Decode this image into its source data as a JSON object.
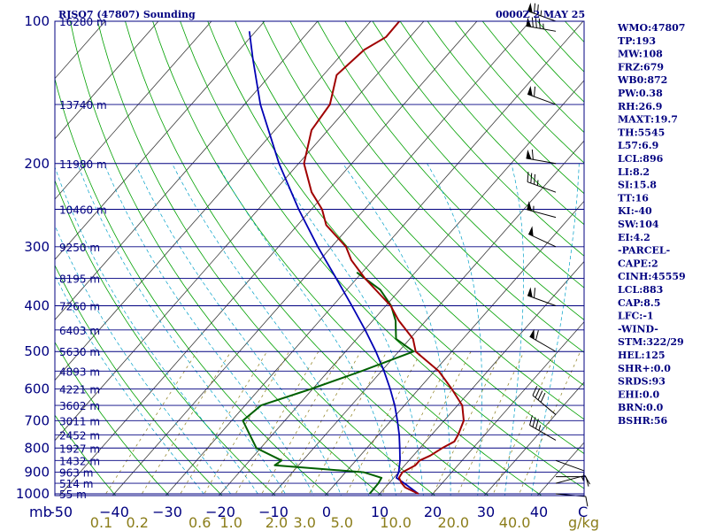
{
  "chart_data": {
    "type": "skew-t",
    "title": "RJSO7 (47807) Sounding",
    "time_label": "0000Z  2 MAY 25",
    "pressure_unit_label": "mb",
    "pressure_levels": [
      100,
      200,
      300,
      400,
      500,
      600,
      700,
      800,
      900,
      1000
    ],
    "pressure_labels": [
      "100",
      "200",
      "300",
      "400",
      "500",
      "600",
      "700",
      "800",
      "900",
      "1000"
    ],
    "height_labels": [
      {
        "p": 100,
        "text": "16280 m"
      },
      {
        "p": 150,
        "text": "13740 m"
      },
      {
        "p": 200,
        "text": "11980 m"
      },
      {
        "p": 250,
        "text": "10460 m"
      },
      {
        "p": 300,
        "text": "9250 m"
      },
      {
        "p": 350,
        "text": "8195 m"
      },
      {
        "p": 400,
        "text": "7260 m"
      },
      {
        "p": 450,
        "text": "6403 m"
      },
      {
        "p": 500,
        "text": "5630 m"
      },
      {
        "p": 550,
        "text": "4893 m"
      },
      {
        "p": 600,
        "text": "4221 m"
      },
      {
        "p": 650,
        "text": "3602 m"
      },
      {
        "p": 700,
        "text": "3011 m"
      },
      {
        "p": 750,
        "text": "2452 m"
      },
      {
        "p": 800,
        "text": "1927 m"
      },
      {
        "p": 850,
        "text": "1432 m"
      },
      {
        "p": 900,
        "text": "963 m"
      },
      {
        "p": 950,
        "text": "514 m"
      },
      {
        "p": 1000,
        "text": "55 m"
      }
    ],
    "temperature_ticks": [
      -50,
      -40,
      -30,
      -20,
      -10,
      0,
      10,
      20,
      30,
      40
    ],
    "temperature_labels": [
      "-50",
      "−40",
      "−30",
      "−20",
      "−10",
      "0",
      "10",
      "20",
      "30",
      "40"
    ],
    "xlabel": "C",
    "mixing_ratio_labels": [
      "0.1",
      "0.2",
      "0.6",
      "1.0",
      "2.0",
      "3.0",
      "5.0",
      "10.0",
      "20.0",
      "40.0"
    ],
    "mixing_ratio_unit": "g/kg",
    "temperature_profile": [
      [
        1000,
        17.3
      ],
      [
        970,
        13.8
      ],
      [
        950,
        12.4
      ],
      [
        925,
        11.0
      ],
      [
        900,
        10.7
      ],
      [
        870,
        12.0
      ],
      [
        850,
        12.0
      ],
      [
        830,
        13.2
      ],
      [
        800,
        14.2
      ],
      [
        775,
        15.4
      ],
      [
        750,
        15.0
      ],
      [
        700,
        13.7
      ],
      [
        650,
        10.9
      ],
      [
        600,
        6.2
      ],
      [
        550,
        0.8
      ],
      [
        500,
        -6.8
      ],
      [
        470,
        -9.4
      ],
      [
        430,
        -15.1
      ],
      [
        400,
        -19.1
      ],
      [
        350,
        -28.5
      ],
      [
        320,
        -34.1
      ],
      [
        300,
        -37.3
      ],
      [
        270,
        -44.6
      ],
      [
        250,
        -48.0
      ],
      [
        230,
        -52.8
      ],
      [
        200,
        -59.0
      ],
      [
        170,
        -63.1
      ],
      [
        150,
        -63.9
      ],
      [
        130,
        -67.5
      ],
      [
        115,
        -66.5
      ],
      [
        108,
        -64.5
      ],
      [
        100,
        -64.6
      ]
    ],
    "dewpoint_profile": [
      [
        1000,
        8.1
      ],
      [
        950,
        8.0
      ],
      [
        925,
        7.7
      ],
      [
        900,
        3.4
      ],
      [
        870,
        -14.5
      ],
      [
        850,
        -14.0
      ],
      [
        800,
        -20.8
      ],
      [
        700,
        -27.9
      ],
      [
        650,
        -27.0
      ],
      [
        600,
        -20.3
      ],
      [
        550,
        -13.8
      ],
      [
        500,
        -7.2
      ],
      [
        470,
        -12.6
      ],
      [
        430,
        -15.7
      ],
      [
        400,
        -19.0
      ],
      [
        370,
        -23.7
      ],
      [
        340,
        -31.0
      ]
    ],
    "parcel_profile": [
      [
        1000,
        17.3
      ],
      [
        950,
        12.9
      ],
      [
        925,
        10.5
      ],
      [
        900,
        10.0
      ],
      [
        850,
        8.3
      ],
      [
        800,
        6.2
      ],
      [
        750,
        3.9
      ],
      [
        700,
        1.2
      ],
      [
        650,
        -1.8
      ],
      [
        600,
        -5.4
      ],
      [
        550,
        -9.5
      ],
      [
        500,
        -14.3
      ],
      [
        450,
        -19.9
      ],
      [
        400,
        -26.4
      ],
      [
        350,
        -33.9
      ],
      [
        300,
        -42.6
      ],
      [
        250,
        -52.4
      ],
      [
        200,
        -63.7
      ],
      [
        150,
        -77.0
      ],
      [
        120,
        -86.0
      ],
      [
        105,
        -91.2
      ]
    ],
    "wind_barbs": [
      {
        "p": 1000,
        "dir": 95,
        "spd": 10
      },
      {
        "p": 950,
        "dir": 75,
        "spd": 15
      },
      {
        "p": 920,
        "dir": 90,
        "spd": 10
      },
      {
        "p": 850,
        "dir": 110,
        "spd": 10
      },
      {
        "p": 770,
        "dir": 300,
        "spd": 35
      },
      {
        "p": 680,
        "dir": 310,
        "spd": 40
      },
      {
        "p": 500,
        "dir": 300,
        "spd": 60
      },
      {
        "p": 400,
        "dir": 290,
        "spd": 60
      },
      {
        "p": 300,
        "dir": 295,
        "spd": 50
      },
      {
        "p": 260,
        "dir": 285,
        "spd": 55
      },
      {
        "p": 230,
        "dir": 290,
        "spd": 35
      },
      {
        "p": 200,
        "dir": 280,
        "spd": 60
      },
      {
        "p": 150,
        "dir": 290,
        "spd": 60
      },
      {
        "p": 105,
        "dir": 280,
        "spd": 85
      },
      {
        "p": 100,
        "dir": 290,
        "spd": 75
      }
    ]
  },
  "indices": [
    "WMO:47807",
    "TP:193",
    "MW:108",
    "FRZ:679",
    "WB0:872",
    "PW:0.38",
    "RH:26.9",
    "MAXT:19.7",
    "TH:5545",
    "L57:6.9",
    "LCL:896",
    "LI:8.2",
    "SI:15.8",
    "TT:16",
    "KI:-40",
    "SW:104",
    "EI:4.2",
    "-PARCEL-",
    "CAPE:2",
    "CINH:45559",
    "LCL:883",
    "CAP:8.5",
    "LFC:-1",
    "-WIND-",
    "STM:322/29",
    "HEL:125",
    "SHR+:0.0",
    "SRDS:93",
    "EHI:0.0",
    "BRN:0.0",
    "BSHR:56"
  ],
  "colors": {
    "isobar": "#000080",
    "isotherm": "#3a3a3a",
    "dry_adiabat": "#00a000",
    "moist_adiabat": "#00a0c8",
    "mixing_ratio": "#8b7d1a",
    "temperature": "#a00000",
    "dewpoint": "#006000",
    "parcel": "#0000b4",
    "text": "#000080"
  }
}
